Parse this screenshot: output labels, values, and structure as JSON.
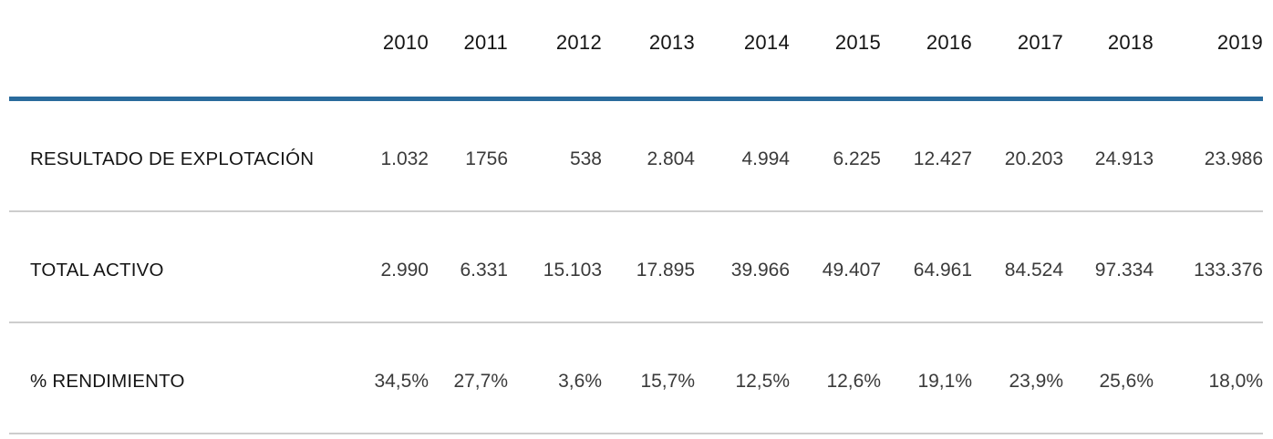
{
  "chart_data": {
    "type": "table",
    "columns": [
      "2010",
      "2011",
      "2012",
      "2013",
      "2014",
      "2015",
      "2016",
      "2017",
      "2018",
      "2019"
    ],
    "rows": [
      {
        "label": "RESULTADO DE EXPLOTACIÓN",
        "values": [
          "1.032",
          "1756",
          "538",
          "2.804",
          "4.994",
          "6.225",
          "12.427",
          "20.203",
          "24.913",
          "23.986"
        ]
      },
      {
        "label": "TOTAL ACTIVO",
        "values": [
          "2.990",
          "6.331",
          "15.103",
          "17.895",
          "39.966",
          "49.407",
          "64.961",
          "84.524",
          "97.334",
          "133.376"
        ]
      },
      {
        "label": "% RENDIMIENTO",
        "values": [
          "34,5%",
          "27,7%",
          "3,6%",
          "15,7%",
          "12,5%",
          "12,6%",
          "19,1%",
          "23,9%",
          "25,6%",
          "18,0%"
        ]
      }
    ],
    "layout": {
      "header_position": "top",
      "value_alignment": "right",
      "label_column_alignment": "left"
    }
  },
  "style": {
    "accent_line_color": "#2a6b9c",
    "divider_color": "#cdcdcd"
  }
}
